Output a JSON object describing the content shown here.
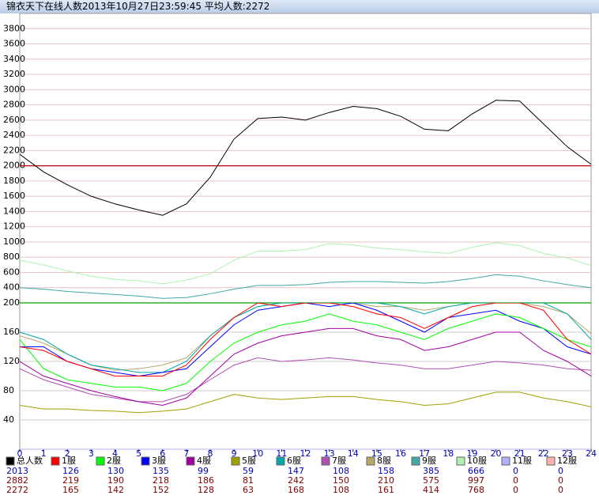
{
  "chart_data": {
    "type": "line",
    "title": "锦衣天下在线人数2013年10月27日23:59:45   平均人数:2272",
    "x": [
      0,
      1,
      2,
      3,
      4,
      5,
      6,
      7,
      8,
      9,
      10,
      11,
      12,
      13,
      14,
      15,
      16,
      17,
      18,
      19,
      20,
      21,
      22,
      23,
      24
    ],
    "xlim": [
      0,
      24
    ],
    "xticks": [
      0,
      1,
      2,
      3,
      4,
      5,
      6,
      7,
      8,
      9,
      10,
      11,
      12,
      13,
      14,
      15,
      16,
      17,
      18,
      19,
      20,
      21,
      22,
      23,
      24
    ],
    "ylim": [
      200,
      4000
    ],
    "yticks": [
      400,
      600,
      800,
      1000,
      1200,
      1400,
      1600,
      1800,
      2000,
      2200,
      2400,
      2600,
      2800,
      3000,
      3200,
      3400,
      3600,
      3800
    ],
    "y2lim": [
      0,
      200
    ],
    "y2ticks": [
      40,
      80,
      120,
      160,
      200
    ],
    "reference_lines": [
      {
        "value": 2000,
        "axis": "y",
        "color": "#c00000"
      },
      {
        "value": 200,
        "axis": "y2",
        "color": "#00a000"
      }
    ],
    "series": [
      {
        "name": "总人数",
        "color": "#000000",
        "axis": "y",
        "stats": [
          2013,
          2882,
          2272
        ],
        "values": [
          2150,
          1920,
          1750,
          1600,
          1500,
          1420,
          1350,
          1500,
          1850,
          2350,
          2620,
          2640,
          2600,
          2700,
          2780,
          2750,
          2650,
          2480,
          2460,
          2680,
          2860,
          2850,
          2550,
          2250,
          2020
        ]
      },
      {
        "name": "1服",
        "color": "#ff0000",
        "axis": "y2",
        "stats": [
          126,
          219,
          165
        ],
        "values": [
          140,
          135,
          120,
          110,
          100,
          100,
          100,
          115,
          150,
          180,
          200,
          195,
          200,
          200,
          195,
          185,
          180,
          165,
          180,
          195,
          200,
          200,
          190,
          150,
          130
        ]
      },
      {
        "name": "2服",
        "color": "#00ff00",
        "axis": "y2",
        "stats": [
          130,
          190,
          142
        ],
        "values": [
          150,
          110,
          95,
          90,
          85,
          85,
          80,
          90,
          120,
          145,
          160,
          170,
          175,
          185,
          175,
          170,
          160,
          150,
          165,
          175,
          185,
          180,
          165,
          150,
          140
        ]
      },
      {
        "name": "3服",
        "color": "#0000ff",
        "axis": "y2",
        "stats": [
          135,
          218,
          152
        ],
        "values": [
          140,
          140,
          120,
          110,
          105,
          100,
          105,
          110,
          140,
          170,
          190,
          195,
          200,
          195,
          200,
          190,
          175,
          160,
          180,
          185,
          190,
          175,
          165,
          140,
          130
        ]
      },
      {
        "name": "4服",
        "color": "#a000a0",
        "axis": "y2",
        "stats": [
          99,
          186,
          128
        ],
        "values": [
          120,
          100,
          90,
          80,
          72,
          65,
          60,
          70,
          100,
          130,
          145,
          155,
          160,
          165,
          165,
          155,
          150,
          135,
          140,
          150,
          160,
          160,
          135,
          120,
          100
        ]
      },
      {
        "name": "5服",
        "color": "#a0a000",
        "axis": "y2",
        "stats": [
          59,
          81,
          63
        ],
        "values": [
          60,
          55,
          55,
          53,
          52,
          50,
          52,
          55,
          65,
          75,
          70,
          68,
          70,
          72,
          72,
          68,
          65,
          60,
          62,
          70,
          78,
          78,
          70,
          65,
          58
        ]
      },
      {
        "name": "6服",
        "color": "#00a8a8",
        "axis": "y2",
        "stats": [
          147,
          242,
          168
        ],
        "values": [
          160,
          150,
          130,
          115,
          110,
          105,
          105,
          120,
          155,
          180,
          195,
          200,
          200,
          200,
          200,
          200,
          195,
          185,
          195,
          200,
          200,
          200,
          200,
          185,
          150
        ]
      },
      {
        "name": "7服",
        "color": "#b050b0",
        "axis": "y2",
        "stats": [
          108,
          150,
          108
        ],
        "values": [
          110,
          95,
          85,
          75,
          70,
          65,
          65,
          75,
          95,
          115,
          125,
          120,
          122,
          125,
          122,
          118,
          115,
          110,
          110,
          115,
          120,
          118,
          115,
          110,
          108
        ]
      },
      {
        "name": "8服",
        "color": "#b8a868",
        "axis": "y2",
        "stats": [
          158,
          210,
          161
        ],
        "values": [
          155,
          145,
          130,
          115,
          108,
          110,
          115,
          125,
          155,
          180,
          195,
          200,
          200,
          200,
          200,
          195,
          195,
          190,
          195,
          200,
          200,
          200,
          195,
          185,
          158
        ]
      },
      {
        "name": "9服",
        "color": "#40a8a8",
        "axis": "y",
        "stats": [
          385,
          575,
          414
        ],
        "values": [
          400,
          380,
          350,
          330,
          310,
          290,
          260,
          270,
          320,
          380,
          430,
          430,
          440,
          470,
          480,
          480,
          470,
          460,
          480,
          520,
          570,
          550,
          490,
          440,
          400
        ]
      },
      {
        "name": "10服",
        "color": "#b0f0b0",
        "axis": "y",
        "stats": [
          666,
          997,
          768
        ],
        "values": [
          760,
          700,
          620,
          550,
          510,
          490,
          450,
          500,
          580,
          760,
          880,
          880,
          900,
          980,
          960,
          920,
          900,
          870,
          850,
          930,
          990,
          950,
          850,
          790,
          690
        ]
      },
      {
        "name": "11服",
        "color": "#b0b0ff",
        "axis": "y2",
        "stats": [
          0,
          0,
          0
        ],
        "values": [
          0,
          0,
          0,
          0,
          0,
          0,
          0,
          0,
          0,
          0,
          0,
          0,
          0,
          0,
          0,
          0,
          0,
          0,
          0,
          0,
          0,
          0,
          0,
          0,
          0
        ]
      },
      {
        "name": "12服",
        "color": "#ffb0b0",
        "axis": "y2",
        "stats": [
          0,
          0,
          0
        ],
        "values": [
          0,
          0,
          0,
          0,
          0,
          0,
          0,
          0,
          0,
          0,
          0,
          0,
          0,
          0,
          0,
          0,
          0,
          0,
          0,
          0,
          0,
          0,
          0,
          0,
          0
        ]
      }
    ]
  }
}
